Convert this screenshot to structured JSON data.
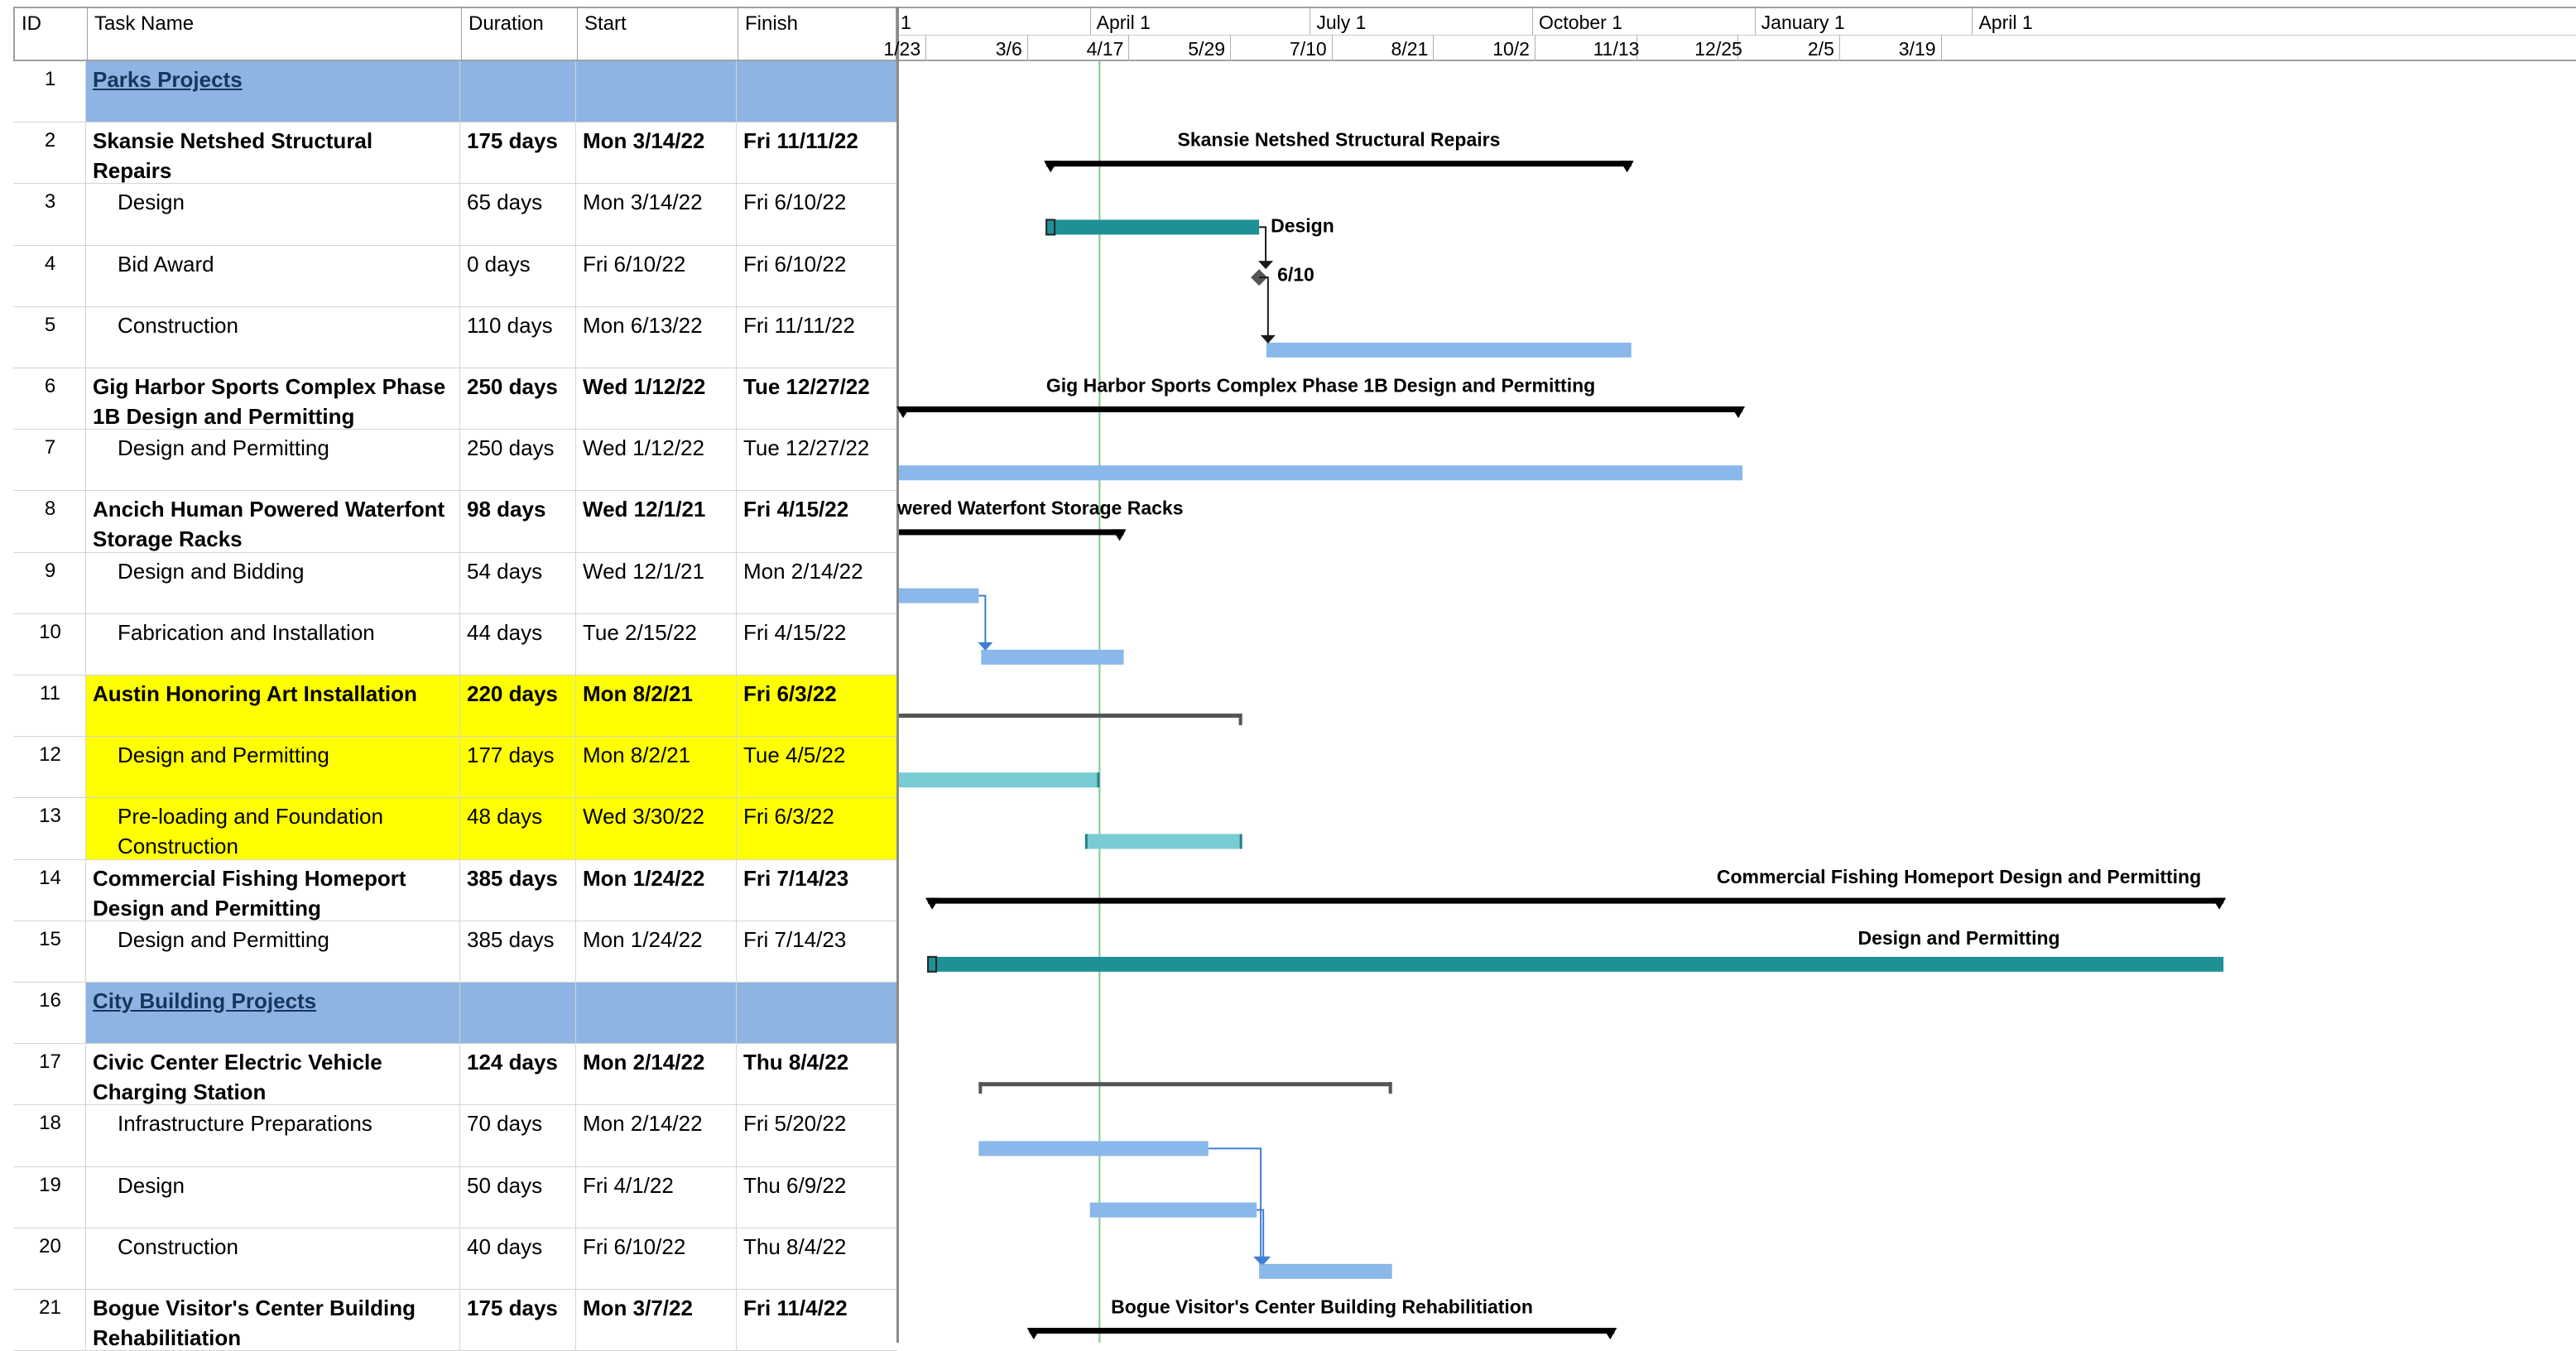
{
  "table": {
    "headers": {
      "id": "ID",
      "name": "Task Name",
      "duration": "Duration",
      "start": "Start",
      "finish": "Finish"
    },
    "rows": [
      {
        "id": "1",
        "name": "Parks Projects",
        "duration": "",
        "start": "",
        "finish": "",
        "style": "group"
      },
      {
        "id": "2",
        "name": "Skansie Netshed Structural Repairs",
        "duration": "175 days",
        "start": "Mon 3/14/22",
        "finish": "Fri 11/11/22",
        "style": "summary"
      },
      {
        "id": "3",
        "name": "Design",
        "duration": "65 days",
        "start": "Mon 3/14/22",
        "finish": "Fri 6/10/22",
        "style": "task"
      },
      {
        "id": "4",
        "name": "Bid Award",
        "duration": "0 days",
        "start": "Fri 6/10/22",
        "finish": "Fri 6/10/22",
        "style": "task"
      },
      {
        "id": "5",
        "name": "Construction",
        "duration": "110 days",
        "start": "Mon 6/13/22",
        "finish": "Fri 11/11/22",
        "style": "task"
      },
      {
        "id": "6",
        "name": "Gig Harbor Sports Complex Phase 1B Design and Permitting",
        "duration": "250 days",
        "start": "Wed 1/12/22",
        "finish": "Tue 12/27/22",
        "style": "summary"
      },
      {
        "id": "7",
        "name": "Design and Permitting",
        "duration": "250 days",
        "start": "Wed 1/12/22",
        "finish": "Tue 12/27/22",
        "style": "task"
      },
      {
        "id": "8",
        "name": "Ancich Human Powered Waterfont Storage Racks",
        "duration": "98 days",
        "start": "Wed 12/1/21",
        "finish": "Fri 4/15/22",
        "style": "summary"
      },
      {
        "id": "9",
        "name": "Design and Bidding",
        "duration": "54 days",
        "start": "Wed 12/1/21",
        "finish": "Mon 2/14/22",
        "style": "task"
      },
      {
        "id": "10",
        "name": "Fabrication and Installation",
        "duration": "44 days",
        "start": "Tue 2/15/22",
        "finish": "Fri 4/15/22",
        "style": "task"
      },
      {
        "id": "11",
        "name": "Austin Honoring Art Installation",
        "duration": "220 days",
        "start": "Mon 8/2/21",
        "finish": "Fri 6/3/22",
        "style": "summary-hl"
      },
      {
        "id": "12",
        "name": "Design and Permitting",
        "duration": "177 days",
        "start": "Mon 8/2/21",
        "finish": "Tue 4/5/22",
        "style": "task-hl"
      },
      {
        "id": "13",
        "name": "Pre-loading and Foundation Construction",
        "duration": "48 days",
        "start": "Wed 3/30/22",
        "finish": "Fri 6/3/22",
        "style": "task-hl"
      },
      {
        "id": "14",
        "name": "Commercial Fishing Homeport Design and Permitting",
        "duration": "385 days",
        "start": "Mon 1/24/22",
        "finish": "Fri 7/14/23",
        "style": "summary"
      },
      {
        "id": "15",
        "name": "Design and Permitting",
        "duration": "385 days",
        "start": "Mon 1/24/22",
        "finish": "Fri 7/14/23",
        "style": "task"
      },
      {
        "id": "16",
        "name": "City Building Projects",
        "duration": "",
        "start": "",
        "finish": "",
        "style": "group"
      },
      {
        "id": "17",
        "name": "Civic Center Electric Vehicle Charging Station",
        "duration": "124 days",
        "start": "Mon 2/14/22",
        "finish": "Thu 8/4/22",
        "style": "summary"
      },
      {
        "id": "18",
        "name": "Infrastructure Preparations",
        "duration": "70 days",
        "start": "Mon 2/14/22",
        "finish": "Fri 5/20/22",
        "style": "task"
      },
      {
        "id": "19",
        "name": "Design",
        "duration": "50 days",
        "start": "Fri 4/1/22",
        "finish": "Thu 6/9/22",
        "style": "task"
      },
      {
        "id": "20",
        "name": "Construction",
        "duration": "40 days",
        "start": "Fri 6/10/22",
        "finish": "Thu 8/4/22",
        "style": "task"
      },
      {
        "id": "21",
        "name": "Bogue Visitor's Center Building Rehabilitiation",
        "duration": "175 days",
        "start": "Mon 3/7/22",
        "finish": "Fri 11/4/22",
        "style": "summary"
      }
    ]
  },
  "timescale": {
    "major": [
      {
        "label": "1",
        "date": "2022-01-01"
      },
      {
        "label": "April 1",
        "date": "2022-04-01"
      },
      {
        "label": "July 1",
        "date": "2022-07-01"
      },
      {
        "label": "October 1",
        "date": "2022-10-01"
      },
      {
        "label": "January 1",
        "date": "2023-01-01"
      },
      {
        "label": "April 1",
        "date": "2023-04-01"
      }
    ],
    "minor": [
      "1/23",
      "3/6",
      "4/17",
      "5/29",
      "7/10",
      "8/21",
      "10/2",
      "11/13",
      "12/25",
      "2/5",
      "3/19"
    ],
    "minor_dates": [
      "2022-01-23",
      "2022-03-06",
      "2022-04-17",
      "2022-05-29",
      "2022-07-10",
      "2022-08-21",
      "2022-10-02",
      "2022-11-13",
      "2022-12-25",
      "2023-02-05",
      "2023-03-19"
    ],
    "status_date": "2022-04-05"
  },
  "bars": [
    {
      "row": 2,
      "type": "summary",
      "start": "2022-03-14",
      "finish": "2022-11-11",
      "label": "Skansie Netshed Structural Repairs",
      "label_pos": "above"
    },
    {
      "row": 3,
      "type": "task-teal",
      "start": "2022-03-14",
      "finish": "2022-06-10",
      "label": "Design",
      "label_pos": "right"
    },
    {
      "row": 4,
      "type": "milestone",
      "start": "2022-06-10",
      "finish": "2022-06-10",
      "label": "6/10",
      "label_pos": "right"
    },
    {
      "row": 5,
      "type": "task",
      "start": "2022-06-13",
      "finish": "2022-11-11",
      "label": "",
      "label_pos": ""
    },
    {
      "row": 6,
      "type": "summary",
      "start": "2022-01-12",
      "finish": "2022-12-27",
      "label": "Gig Harbor Sports Complex Phase 1B Design and Permitting",
      "label_pos": "above"
    },
    {
      "row": 7,
      "type": "task",
      "start": "2022-01-12",
      "finish": "2022-12-27",
      "label": "",
      "label_pos": ""
    },
    {
      "row": 8,
      "type": "summary",
      "start": "2021-12-01",
      "finish": "2022-04-15",
      "label": "wered Waterfont Storage Racks",
      "label_pos": "above"
    },
    {
      "row": 9,
      "type": "task",
      "start": "2021-12-01",
      "finish": "2022-02-14",
      "label": "",
      "label_pos": ""
    },
    {
      "row": 10,
      "type": "task",
      "start": "2022-02-15",
      "finish": "2022-04-15",
      "label": "",
      "label_pos": ""
    },
    {
      "row": 11,
      "type": "summary-thin",
      "start": "2021-08-02",
      "finish": "2022-06-03",
      "label": "",
      "label_pos": ""
    },
    {
      "row": 12,
      "type": "task-aqua",
      "start": "2021-08-02",
      "finish": "2022-04-05",
      "label": "",
      "label_pos": ""
    },
    {
      "row": 13,
      "type": "task-aqua",
      "start": "2022-03-30",
      "finish": "2022-06-03",
      "label": "",
      "label_pos": ""
    },
    {
      "row": 14,
      "type": "summary",
      "start": "2022-01-24",
      "finish": "2023-07-14",
      "label": "Commercial Fishing Homeport Design and Permitting",
      "label_pos": "above"
    },
    {
      "row": 15,
      "type": "task-teal",
      "start": "2022-01-24",
      "finish": "2023-07-14",
      "label": "Design and Permitting",
      "label_pos": "above"
    },
    {
      "row": 17,
      "type": "summary-thin",
      "start": "2022-02-14",
      "finish": "2022-08-04",
      "label": "",
      "label_pos": ""
    },
    {
      "row": 18,
      "type": "task",
      "start": "2022-02-14",
      "finish": "2022-05-20",
      "label": "",
      "label_pos": ""
    },
    {
      "row": 19,
      "type": "task",
      "start": "2022-04-01",
      "finish": "2022-06-09",
      "label": "",
      "label_pos": ""
    },
    {
      "row": 20,
      "type": "task",
      "start": "2022-06-10",
      "finish": "2022-08-04",
      "label": "",
      "label_pos": ""
    },
    {
      "row": 21,
      "type": "summary",
      "start": "2022-03-07",
      "finish": "2022-11-04",
      "label": "Bogue Visitor's Center Building Rehabilitiation",
      "label_pos": "above"
    }
  ],
  "links": [
    {
      "from": 3,
      "to": 4
    },
    {
      "from": 4,
      "to": 5
    },
    {
      "from": 9,
      "to": 10
    },
    {
      "from": 18,
      "to": 20
    },
    {
      "from": 19,
      "to": 20
    }
  ],
  "colors": {
    "group_fill": "#8db4e2",
    "highlight": "#ffff00",
    "task_bar": "#8ab8ea",
    "teal_bar": "#1e9196",
    "aqua_bar": "#79ccd4",
    "summary": "#000000",
    "status_line": "#7fc98b"
  }
}
